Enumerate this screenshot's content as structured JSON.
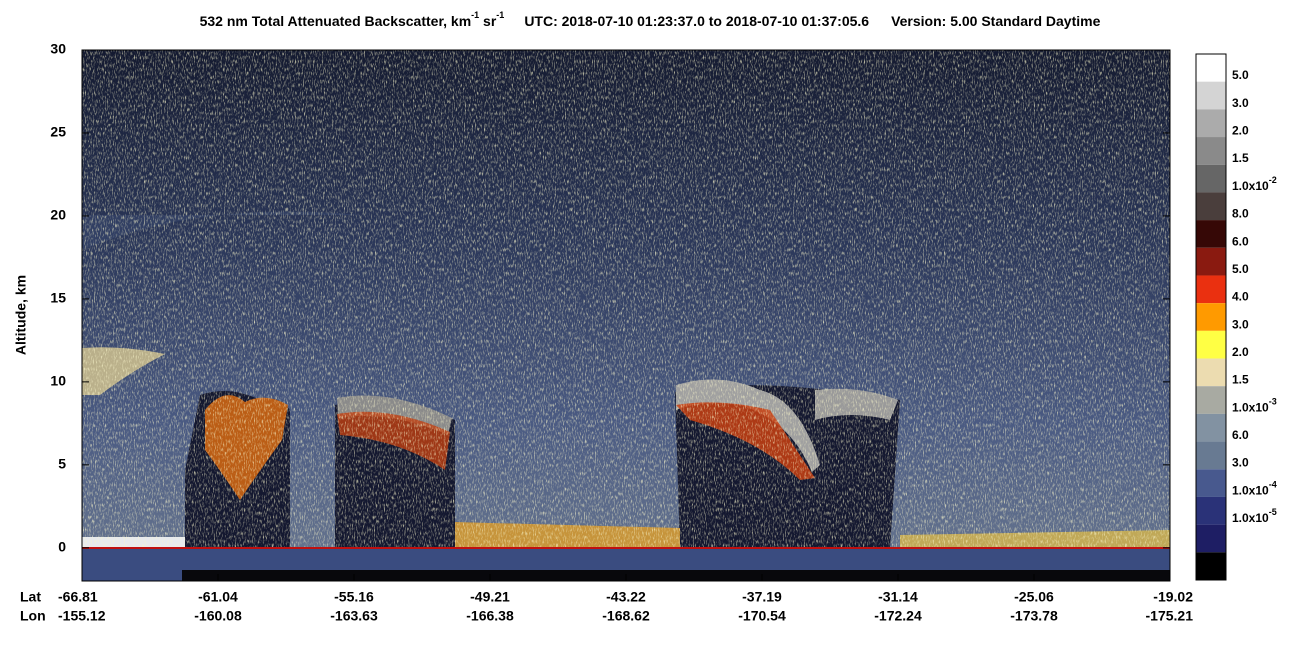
{
  "chart_data": {
    "type": "curtain",
    "title": {
      "main": "532 nm Total Attenuated Backscatter, km",
      "main_sup": "-1",
      "unit2": " sr",
      "unit2_sup": "-1",
      "utc": "UTC:  2018-07-10 01:23:37.0  to  2018-07-10 01:37:05.6",
      "version": "Version: 5.00  Standard  Daytime"
    },
    "ylabel": "Altitude, km",
    "ylim": [
      -2,
      30
    ],
    "yticks": [
      0,
      5,
      10,
      15,
      20,
      25,
      30
    ],
    "x_row_labels": [
      "Lat",
      "Lon"
    ],
    "lat": [
      "-66.81",
      "-61.04",
      "-55.16",
      "-49.21",
      "-43.22",
      "-37.19",
      "-31.14",
      "-25.06",
      "-19.02"
    ],
    "lon": [
      "-155.12",
      "-160.08",
      "-163.63",
      "-166.38",
      "-168.62",
      "-170.54",
      "-172.24",
      "-173.78",
      "-175.21"
    ],
    "colorbar": {
      "colors": [
        "#ffffff",
        "#d4d4d4",
        "#ababab",
        "#8a8a8a",
        "#666666",
        "#4a3e3c",
        "#360806",
        "#8a1a10",
        "#ea3010",
        "#ff9a00",
        "#ffff44",
        "#ecdcb0",
        "#a8aaa2",
        "#8292a2",
        "#687a92",
        "#48598e",
        "#2a3278",
        "#1e1e64",
        "#000000"
      ],
      "labels": [
        {
          "text": "5.0"
        },
        {
          "text": "3.0"
        },
        {
          "text": "2.0"
        },
        {
          "text": "1.5"
        },
        {
          "text": "1.0x10",
          "sup": "-2"
        },
        {
          "text": "8.0"
        },
        {
          "text": "6.0"
        },
        {
          "text": "5.0"
        },
        {
          "text": "4.0"
        },
        {
          "text": "3.0"
        },
        {
          "text": "2.0"
        },
        {
          "text": "1.5"
        },
        {
          "text": "1.0x10",
          "sup": "-3"
        },
        {
          "text": "6.0"
        },
        {
          "text": "3.0"
        },
        {
          "text": "1.0x10",
          "sup": "-4"
        },
        {
          "text": "1.0x10",
          "sup": "-5"
        }
      ]
    }
  }
}
